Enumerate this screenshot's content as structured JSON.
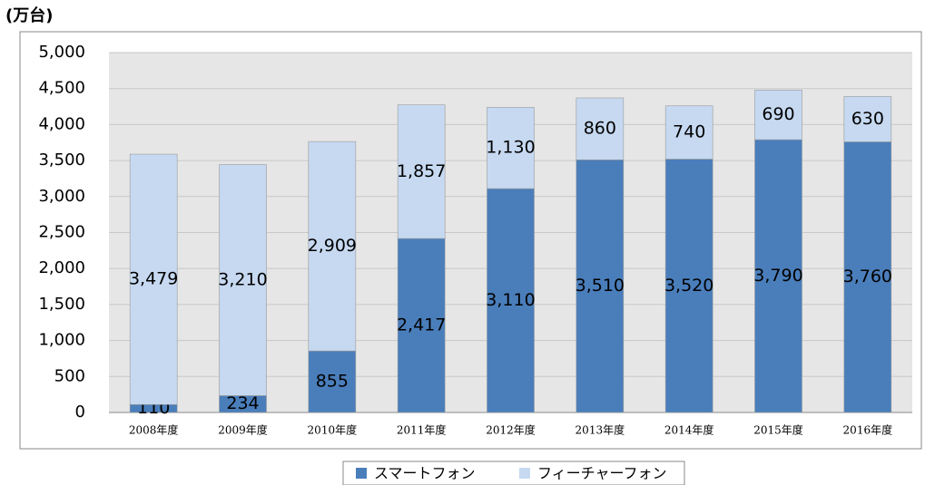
{
  "chart_data": {
    "type": "stacked_bar",
    "y_label": "(万台)",
    "categories": [
      "2008年度",
      "2009年度",
      "2010年度",
      "2011年度",
      "2012年度",
      "2013年度",
      "2014年度",
      "2015年度",
      "2016年度"
    ],
    "series": [
      {
        "name": "スマートフォン",
        "color": "#4a7ebb",
        "values": [
          110,
          234,
          855,
          2417,
          3110,
          3510,
          3520,
          3790,
          3760
        ],
        "value_labels": [
          "110",
          "234",
          "855",
          "2,417",
          "3,110",
          "3,510",
          "3,520",
          "3,790",
          "3,760"
        ]
      },
      {
        "name": "フィーチャーフォン",
        "color": "#c6d9f1",
        "values": [
          3479,
          3210,
          2909,
          1857,
          1130,
          860,
          740,
          690,
          630
        ],
        "value_labels": [
          "3,479",
          "3,210",
          "2,909",
          "1,857",
          "1,130",
          "860",
          "740",
          "690",
          "630"
        ]
      }
    ],
    "ylim": [
      0,
      5000
    ],
    "yticks": [
      0,
      500,
      {
        "value": 1000,
        "label": "1,000"
      },
      {
        "value": 1500,
        "label": "1,500"
      },
      {
        "value": 2000,
        "label": "2,000"
      },
      {
        "value": 2500,
        "label": "2,500"
      },
      {
        "value": 3000,
        "label": "3,000"
      },
      {
        "value": 3500,
        "label": "3,500"
      },
      {
        "value": 4000,
        "label": "4,000"
      },
      {
        "value": 4500,
        "label": "4,500"
      },
      {
        "value": 5000,
        "label": "5,000"
      }
    ],
    "grid": true,
    "legend": "bottom"
  }
}
